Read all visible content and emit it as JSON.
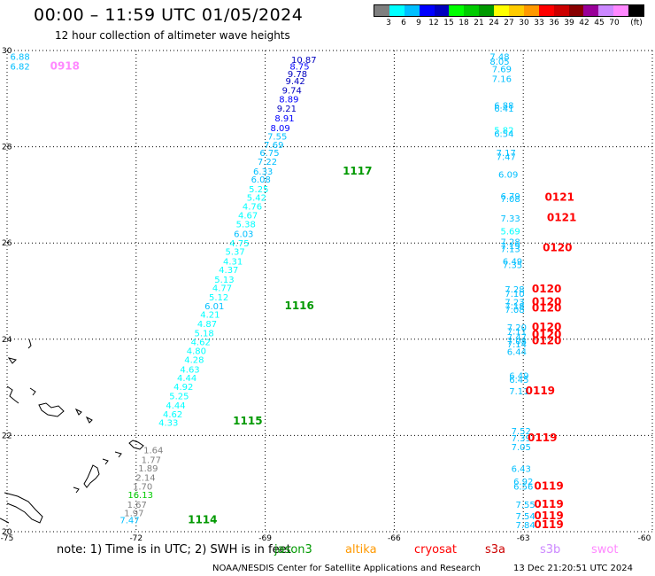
{
  "title": "00:00 – 11:59 UTC 01/05/2024",
  "subtitle": "12 hour collection of altimeter wave heights",
  "colorbar": {
    "colors": [
      "#7f7f7f",
      "#00ffff",
      "#00bfff",
      "#0000ff",
      "#0000bf",
      "#00ff00",
      "#00cc00",
      "#009900",
      "#ffff00",
      "#ffcc00",
      "#ff9900",
      "#ff0000",
      "#cc0000",
      "#880000",
      "#990099",
      "#cc88ff",
      "#ff88ff",
      "#000000"
    ],
    "labels": [
      "3",
      "6",
      "9",
      "12",
      "15",
      "18",
      "21",
      "24",
      "27",
      "30",
      "33",
      "36",
      "39",
      "42",
      "45",
      "70",
      "(ft)"
    ]
  },
  "axes": {
    "lon_ticks": [
      "-75",
      "-72",
      "-69",
      "-66",
      "-63",
      "-60"
    ],
    "lat_ticks": [
      "30",
      "28",
      "26",
      "24",
      "22",
      "20"
    ],
    "lon_range": [
      -75,
      -60
    ],
    "lat_range": [
      20,
      30
    ],
    "grid": true
  },
  "tracks": [
    {
      "id": "track-1117-1116-1115-1114",
      "points": [
        {
          "lat": 29.82,
          "lon": -68.1,
          "value": "10.87",
          "color": "#0000bf"
        },
        {
          "lat": 29.68,
          "lon": -68.2,
          "value": "8.75",
          "color": "#0000ff"
        },
        {
          "lat": 29.52,
          "lon": -68.25,
          "value": "9.78",
          "color": "#0000bf"
        },
        {
          "lat": 29.37,
          "lon": -68.3,
          "value": "9.42",
          "color": "#0000bf"
        },
        {
          "lat": 29.18,
          "lon": -68.38,
          "value": "9.74",
          "color": "#0000bf"
        },
        {
          "lat": 29.0,
          "lon": -68.45,
          "value": "8.89",
          "color": "#0000ff"
        },
        {
          "lat": 28.8,
          "lon": -68.5,
          "value": "9.21",
          "color": "#0000bf"
        },
        {
          "lat": 28.6,
          "lon": -68.55,
          "value": "8.91",
          "color": "#0000ff"
        },
        {
          "lat": 28.4,
          "lon": -68.65,
          "value": "8.09",
          "color": "#0000ff"
        },
        {
          "lat": 28.22,
          "lon": -68.72,
          "value": "7.55",
          "color": "#00bfff"
        },
        {
          "lat": 28.05,
          "lon": -68.8,
          "value": "7.69",
          "color": "#00bfff"
        },
        {
          "lat": 27.88,
          "lon": -68.9,
          "value": "6.75",
          "color": "#00bfff"
        },
        {
          "lat": 27.7,
          "lon": -68.95,
          "value": "7.22",
          "color": "#00bfff"
        },
        {
          "lat": 27.5,
          "lon": -69.05,
          "value": "6.33",
          "color": "#00bfff"
        },
        {
          "lat": 27.33,
          "lon": -69.1,
          "value": "6.08",
          "color": "#00bfff"
        },
        {
          "lat": 27.13,
          "lon": -69.15,
          "value": "5.25",
          "color": "#00ffff"
        },
        {
          "lat": 26.95,
          "lon": -69.2,
          "value": "5.42",
          "color": "#00ffff"
        },
        {
          "lat": 26.77,
          "lon": -69.3,
          "value": "4.76",
          "color": "#00ffff"
        },
        {
          "lat": 26.58,
          "lon": -69.4,
          "value": "4.67",
          "color": "#00ffff"
        },
        {
          "lat": 26.4,
          "lon": -69.45,
          "value": "5.38",
          "color": "#00ffff"
        },
        {
          "lat": 26.2,
          "lon": -69.5,
          "value": "6.03",
          "color": "#00bfff"
        },
        {
          "lat": 26.0,
          "lon": -69.6,
          "value": "4.75",
          "color": "#00ffff"
        },
        {
          "lat": 25.83,
          "lon": -69.7,
          "value": "5.37",
          "color": "#00ffff"
        },
        {
          "lat": 25.63,
          "lon": -69.75,
          "value": "4.31",
          "color": "#00ffff"
        },
        {
          "lat": 25.45,
          "lon": -69.85,
          "value": "4.37",
          "color": "#00ffff"
        },
        {
          "lat": 25.25,
          "lon": -69.95,
          "value": "5.13",
          "color": "#00ffff"
        },
        {
          "lat": 25.07,
          "lon": -70.0,
          "value": "4.77",
          "color": "#00ffff"
        },
        {
          "lat": 24.88,
          "lon": -70.08,
          "value": "5.12",
          "color": "#00ffff"
        },
        {
          "lat": 24.7,
          "lon": -70.18,
          "value": "6.01",
          "color": "#00bfff"
        },
        {
          "lat": 24.52,
          "lon": -70.28,
          "value": "4.21",
          "color": "#00ffff"
        },
        {
          "lat": 24.33,
          "lon": -70.35,
          "value": "4.87",
          "color": "#00ffff"
        },
        {
          "lat": 24.13,
          "lon": -70.42,
          "value": "5.18",
          "color": "#00ffff"
        },
        {
          "lat": 23.95,
          "lon": -70.5,
          "value": "4.62",
          "color": "#00ffff"
        },
        {
          "lat": 23.77,
          "lon": -70.6,
          "value": "4.80",
          "color": "#00ffff"
        },
        {
          "lat": 23.58,
          "lon": -70.65,
          "value": "4.28",
          "color": "#00ffff"
        },
        {
          "lat": 23.38,
          "lon": -70.75,
          "value": "4.63",
          "color": "#00ffff"
        },
        {
          "lat": 23.2,
          "lon": -70.82,
          "value": "4.44",
          "color": "#00ffff"
        },
        {
          "lat": 23.02,
          "lon": -70.9,
          "value": "4.92",
          "color": "#00ffff"
        },
        {
          "lat": 22.83,
          "lon": -71.0,
          "value": "5.25",
          "color": "#00ffff"
        },
        {
          "lat": 22.63,
          "lon": -71.08,
          "value": "4.44",
          "color": "#00ffff"
        },
        {
          "lat": 22.45,
          "lon": -71.15,
          "value": "4.62",
          "color": "#00ffff"
        },
        {
          "lat": 22.27,
          "lon": -71.25,
          "value": "4.33",
          "color": "#00ffff"
        },
        {
          "lat": 21.7,
          "lon": -71.6,
          "value": "1.64",
          "color": "#7f7f7f"
        },
        {
          "lat": 21.5,
          "lon": -71.65,
          "value": "1.77",
          "color": "#7f7f7f"
        },
        {
          "lat": 21.33,
          "lon": -71.72,
          "value": "1.89",
          "color": "#7f7f7f"
        },
        {
          "lat": 21.13,
          "lon": -71.78,
          "value": "2.14",
          "color": "#7f7f7f"
        },
        {
          "lat": 20.95,
          "lon": -71.85,
          "value": "1.70",
          "color": "#7f7f7f"
        },
        {
          "lat": 20.77,
          "lon": -71.9,
          "value": "16.13",
          "color": "#00cc00"
        },
        {
          "lat": 20.57,
          "lon": -71.98,
          "value": "1.67",
          "color": "#7f7f7f"
        },
        {
          "lat": 20.4,
          "lon": -72.05,
          "value": "1.97",
          "color": "#7f7f7f"
        },
        {
          "lat": 20.25,
          "lon": -72.15,
          "value": "7.47",
          "color": "#00bfff"
        }
      ],
      "labels": [
        {
          "lat": 27.5,
          "lon": -67.2,
          "text": "1117",
          "color": "#009900"
        },
        {
          "lat": 24.7,
          "lon": -68.55,
          "text": "1116",
          "color": "#009900"
        },
        {
          "lat": 22.3,
          "lon": -69.75,
          "text": "1115",
          "color": "#009900"
        },
        {
          "lat": 20.25,
          "lon": -70.8,
          "text": "1114",
          "color": "#009900"
        }
      ]
    },
    {
      "id": "track-0121-0120-0119",
      "points": [
        {
          "lat": 29.88,
          "lon": -63.55,
          "value": "7.48",
          "color": "#00bfff"
        },
        {
          "lat": 29.78,
          "lon": -63.55,
          "value": "8.05",
          "color": "#00bfff"
        },
        {
          "lat": 29.62,
          "lon": -63.5,
          "value": "7.69",
          "color": "#00bfff"
        },
        {
          "lat": 29.42,
          "lon": -63.5,
          "value": "7.16",
          "color": "#00bfff"
        },
        {
          "lat": 28.87,
          "lon": -63.45,
          "value": "6.88",
          "color": "#00bfff"
        },
        {
          "lat": 28.8,
          "lon": -63.45,
          "value": "6.41",
          "color": "#00bfff"
        },
        {
          "lat": 28.35,
          "lon": -63.45,
          "value": "5.82",
          "color": "#00ffff"
        },
        {
          "lat": 28.28,
          "lon": -63.45,
          "value": "6.54",
          "color": "#00bfff"
        },
        {
          "lat": 27.88,
          "lon": -63.4,
          "value": "7.17",
          "color": "#00bfff"
        },
        {
          "lat": 27.8,
          "lon": -63.4,
          "value": "7.47",
          "color": "#00bfff"
        },
        {
          "lat": 27.43,
          "lon": -63.35,
          "value": "6.09",
          "color": "#00bfff"
        },
        {
          "lat": 26.98,
          "lon": -63.3,
          "value": "6.79",
          "color": "#00bfff"
        },
        {
          "lat": 26.92,
          "lon": -63.3,
          "value": "7.08",
          "color": "#00bfff"
        },
        {
          "lat": 26.52,
          "lon": -63.3,
          "value": "7.33",
          "color": "#00bfff"
        },
        {
          "lat": 26.25,
          "lon": -63.3,
          "value": "5.69",
          "color": "#00ffff"
        },
        {
          "lat": 26.03,
          "lon": -63.3,
          "value": "7.28",
          "color": "#00bfff"
        },
        {
          "lat": 25.95,
          "lon": -63.3,
          "value": "7.19",
          "color": "#00bfff"
        },
        {
          "lat": 25.88,
          "lon": -63.3,
          "value": "7.13",
          "color": "#00bfff"
        },
        {
          "lat": 25.63,
          "lon": -63.25,
          "value": "6.49",
          "color": "#00bfff"
        },
        {
          "lat": 25.55,
          "lon": -63.25,
          "value": "7.35",
          "color": "#00bfff"
        },
        {
          "lat": 25.05,
          "lon": -63.2,
          "value": "7.28",
          "color": "#00bfff"
        },
        {
          "lat": 24.95,
          "lon": -63.2,
          "value": "7.10",
          "color": "#00bfff"
        },
        {
          "lat": 24.78,
          "lon": -63.2,
          "value": "7.23",
          "color": "#00bfff"
        },
        {
          "lat": 24.7,
          "lon": -63.2,
          "value": "7.18",
          "color": "#00bfff"
        },
        {
          "lat": 24.62,
          "lon": -63.2,
          "value": "7.08",
          "color": "#00bfff"
        },
        {
          "lat": 24.25,
          "lon": -63.15,
          "value": "7.20",
          "color": "#00bfff"
        },
        {
          "lat": 24.17,
          "lon": -63.15,
          "value": "7.11",
          "color": "#00bfff"
        },
        {
          "lat": 24.05,
          "lon": -63.15,
          "value": "7.47",
          "color": "#00bfff"
        },
        {
          "lat": 23.97,
          "lon": -63.15,
          "value": "7.08",
          "color": "#00bfff"
        },
        {
          "lat": 23.9,
          "lon": -63.15,
          "value": "7.14",
          "color": "#00bfff"
        },
        {
          "lat": 23.75,
          "lon": -63.15,
          "value": "6.44",
          "color": "#00bfff"
        },
        {
          "lat": 23.25,
          "lon": -63.1,
          "value": "6.49",
          "color": "#00bfff"
        },
        {
          "lat": 23.17,
          "lon": -63.1,
          "value": "6.45",
          "color": "#00bfff"
        },
        {
          "lat": 22.93,
          "lon": -63.1,
          "value": "7.11",
          "color": "#00bfff"
        },
        {
          "lat": 22.1,
          "lon": -63.05,
          "value": "7.52",
          "color": "#00bfff"
        },
        {
          "lat": 21.95,
          "lon": -63.05,
          "value": "7.39",
          "color": "#00bfff"
        },
        {
          "lat": 21.77,
          "lon": -63.05,
          "value": "7.05",
          "color": "#00bfff"
        },
        {
          "lat": 21.32,
          "lon": -63.05,
          "value": "6.43",
          "color": "#00bfff"
        },
        {
          "lat": 21.05,
          "lon": -63.0,
          "value": "6.92",
          "color": "#00bfff"
        },
        {
          "lat": 20.95,
          "lon": -63.0,
          "value": "6.56",
          "color": "#00bfff"
        },
        {
          "lat": 20.57,
          "lon": -62.95,
          "value": "7.55",
          "color": "#00bfff"
        },
        {
          "lat": 20.33,
          "lon": -62.95,
          "value": "7.54",
          "color": "#00bfff"
        },
        {
          "lat": 20.15,
          "lon": -62.95,
          "value": "7.84",
          "color": "#00bfff"
        }
      ],
      "labels": [
        {
          "lat": 26.95,
          "lon": -62.5,
          "text": "0121",
          "color": "#ff0000"
        },
        {
          "lat": 26.53,
          "lon": -62.45,
          "text": "0121",
          "color": "#ff0000"
        },
        {
          "lat": 25.9,
          "lon": -62.55,
          "text": "0120",
          "color": "#ff0000"
        },
        {
          "lat": 25.05,
          "lon": -62.8,
          "text": "0120",
          "color": "#ff0000"
        },
        {
          "lat": 24.78,
          "lon": -62.8,
          "text": "0120",
          "color": "#ff0000"
        },
        {
          "lat": 24.65,
          "lon": -62.8,
          "text": "0120",
          "color": "#ff0000"
        },
        {
          "lat": 24.25,
          "lon": -62.8,
          "text": "0120",
          "color": "#ff0000"
        },
        {
          "lat": 24.1,
          "lon": -62.8,
          "text": "0120",
          "color": "#ff0000"
        },
        {
          "lat": 23.97,
          "lon": -62.8,
          "text": "0120",
          "color": "#ff0000"
        },
        {
          "lat": 22.93,
          "lon": -62.95,
          "text": "0119",
          "color": "#ff0000"
        },
        {
          "lat": 21.95,
          "lon": -62.9,
          "text": "0119",
          "color": "#ff0000"
        },
        {
          "lat": 20.95,
          "lon": -62.75,
          "text": "0119",
          "color": "#ff0000"
        },
        {
          "lat": 20.57,
          "lon": -62.75,
          "text": "0119",
          "color": "#ff0000"
        },
        {
          "lat": 20.33,
          "lon": -62.75,
          "text": "0119",
          "color": "#ff0000"
        },
        {
          "lat": 20.15,
          "lon": -62.75,
          "text": "0119",
          "color": "#ff0000"
        }
      ]
    },
    {
      "id": "track-0918",
      "points": [
        {
          "lat": 29.88,
          "lon": -74.7,
          "value": "6.88",
          "color": "#00bfff"
        },
        {
          "lat": 29.68,
          "lon": -74.7,
          "value": "6.82",
          "color": "#00bfff"
        }
      ],
      "labels": [
        {
          "lat": 29.68,
          "lon": -74.0,
          "text": "0918",
          "color": "#ff88ff"
        }
      ]
    }
  ],
  "legend_note": "note:  1) Time is in UTC; 2) SWH is in feet",
  "satellites": [
    {
      "name": "jason3",
      "color": "#009900"
    },
    {
      "name": "altika",
      "color": "#ff9900"
    },
    {
      "name": "cryosat",
      "color": "#ff0000"
    },
    {
      "name": "s3a",
      "color": "#cc0000"
    },
    {
      "name": "s3b",
      "color": "#cc88ff"
    },
    {
      "name": "swot",
      "color": "#ff88ff"
    }
  ],
  "credit": "NOAA/NESDIS Center for Satellite Applications and Research",
  "generated": "13 Dec 21:20:51 UTC 2024"
}
